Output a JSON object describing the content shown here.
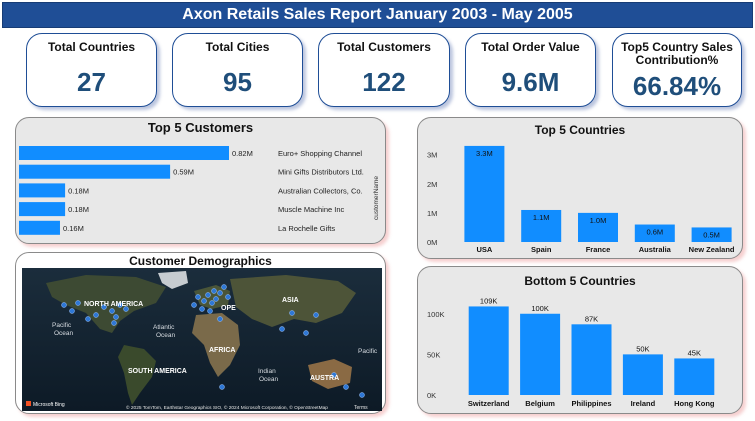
{
  "report": {
    "title": "Axon Retails Sales Report January 2003 - May 2005"
  },
  "kpis": [
    {
      "label": "Total Countries",
      "value": "27"
    },
    {
      "label": "Total Cities",
      "value": "95"
    },
    {
      "label": "Total Customers",
      "value": "122"
    },
    {
      "label": "Total Order Value",
      "value": "9.6M"
    },
    {
      "label": "Top5 Country Sales Contribution%",
      "value": "66.84%"
    }
  ],
  "top_customers": {
    "title": "Top 5 Customers",
    "axis_label": "customerName",
    "color": "#118dff"
  },
  "top_countries": {
    "title": "Top 5 Countries",
    "color": "#118dff"
  },
  "bottom_countries": {
    "title": "Bottom 5 Countries",
    "color": "#118dff"
  },
  "map": {
    "title": "Customer Demographics",
    "labels": {
      "north_america": "NORTH AMERICA",
      "europe": "OPE",
      "asia": "ASIA",
      "africa": "AFRICA",
      "south_america": "SOUTH AMERICA",
      "pacific": "Pacific Ocean",
      "atlantic": "Atlantic Ocean",
      "indian": "Indian Ocean",
      "australia": "AUSTRA",
      "pacific_right": "Pacific"
    },
    "brand": "Microsoft Bing",
    "attribution": "© 2025 TomTom, Earthstar Geographics SIO, © 2024 Microsoft Corporation, © OpenStreetMap",
    "terms": "Terms"
  },
  "chart_data": [
    {
      "type": "bar",
      "orientation": "horizontal",
      "title": "Top 5 Customers",
      "ylabel": "customerName",
      "categories": [
        "Euro+ Shopping Channel",
        "Mini Gifts Distributors Ltd.",
        "Australian Collectors, Co.",
        "Muscle Machine Inc",
        "La Rochelle Gifts"
      ],
      "values": [
        0.82,
        0.59,
        0.18,
        0.18,
        0.16
      ],
      "data_labels": [
        "0.82M",
        "0.59M",
        "0.18M",
        "0.18M",
        "0.16M"
      ],
      "unit": "M"
    },
    {
      "type": "bar",
      "title": "Top 5 Countries",
      "categories": [
        "USA",
        "Spain",
        "France",
        "Australia",
        "New Zealand"
      ],
      "values": [
        3.3,
        1.1,
        1.0,
        0.6,
        0.5
      ],
      "data_labels": [
        "3.3M",
        "1.1M",
        "1.0M",
        "0.6M",
        "0.5M"
      ],
      "yticks": [
        "0M",
        "1M",
        "2M",
        "3M"
      ],
      "ylim": [
        0,
        3.4
      ]
    },
    {
      "type": "bar",
      "title": "Bottom 5 Countries",
      "categories": [
        "Switzerland",
        "Belgium",
        "Philippines",
        "Ireland",
        "Hong Kong"
      ],
      "values": [
        109,
        100,
        87,
        50,
        45
      ],
      "data_labels": [
        "109K",
        "100K",
        "87K",
        "50K",
        "45K"
      ],
      "yticks": [
        "0K",
        "50K",
        "100K"
      ],
      "ylim": [
        0,
        112
      ]
    }
  ]
}
